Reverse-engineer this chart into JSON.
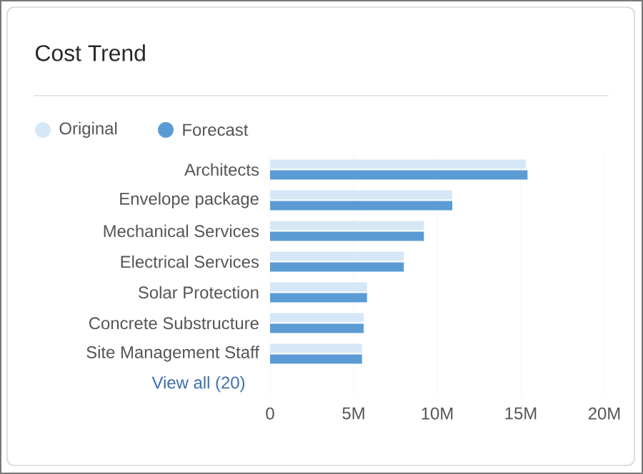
{
  "chart_data": {
    "type": "bar",
    "orientation": "horizontal",
    "title": "Cost Trend",
    "categories": [
      "Architects",
      "Envelope package",
      "Mechanical Services",
      "Electrical Services",
      "Solar Protection",
      "Concrete Substructure",
      "Site Management Staff"
    ],
    "series": [
      {
        "name": "Original",
        "color": "#d6e8f7",
        "values": [
          15.3,
          10.9,
          9.2,
          8.0,
          5.8,
          5.6,
          5.5
        ]
      },
      {
        "name": "Forecast",
        "color": "#5b9bd5",
        "values": [
          15.4,
          10.9,
          9.2,
          8.0,
          5.8,
          5.6,
          5.5
        ]
      }
    ],
    "xlim": [
      0,
      20
    ],
    "xticks": [
      0,
      {
        "value": 5,
        "label": "5M"
      },
      {
        "value": 10,
        "label": "10M"
      },
      {
        "value": 15,
        "label": "15M"
      },
      {
        "value": 20,
        "label": "20M"
      }
    ],
    "grid": "x",
    "legend": "top left",
    "annotations": [
      "View all (20)"
    ]
  }
}
